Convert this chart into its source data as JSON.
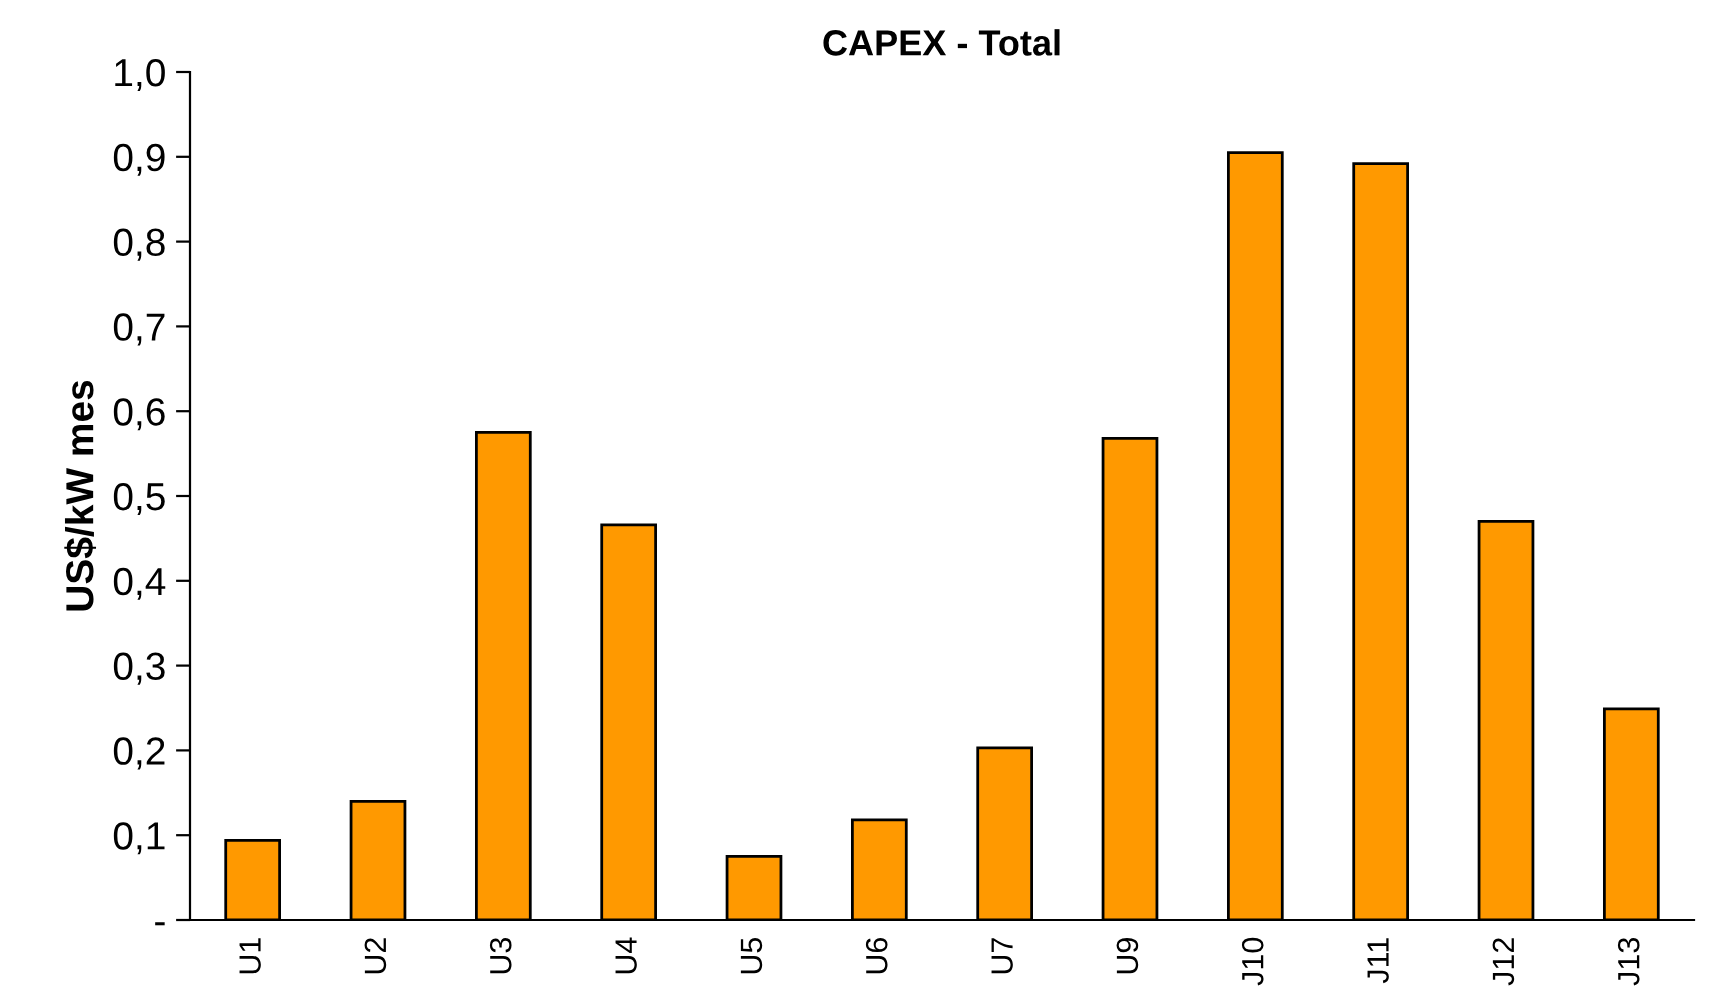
{
  "chart_data": {
    "type": "bar",
    "title": "CAPEX - Total",
    "ylabel": "US$/kW mes",
    "categories": [
      "U1",
      "U2",
      "U3",
      "U4",
      "U5",
      "U6",
      "U7",
      "U9",
      "J10",
      "J11",
      "J12",
      "J13"
    ],
    "values": [
      0.094,
      0.14,
      0.575,
      0.466,
      0.075,
      0.118,
      0.203,
      0.568,
      0.905,
      0.892,
      0.47,
      0.249
    ],
    "color": "#ff9900",
    "ylim": [
      0,
      1.0
    ],
    "yticks": [
      {
        "value": 0,
        "label": "-"
      },
      {
        "value": 0.1,
        "label": "0,1"
      },
      {
        "value": 0.2,
        "label": "0,2"
      },
      {
        "value": 0.3,
        "label": "0,3"
      },
      {
        "value": 0.4,
        "label": "0,4"
      },
      {
        "value": 0.5,
        "label": "0,5"
      },
      {
        "value": 0.6,
        "label": "0,6"
      },
      {
        "value": 0.7,
        "label": "0,7"
      },
      {
        "value": 0.8,
        "label": "0,8"
      },
      {
        "value": 0.9,
        "label": "0,9"
      },
      {
        "value": 1.0,
        "label": "1,0"
      }
    ],
    "grid": false
  }
}
